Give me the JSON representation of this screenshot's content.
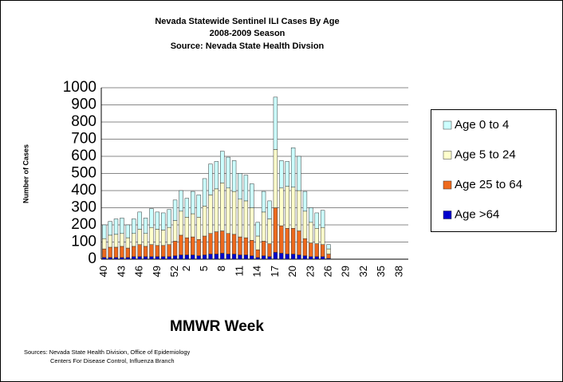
{
  "chart_data": {
    "type": "stacked_bar",
    "title": "Nevada Statewide Sentinel ILI Cases By Age",
    "subtitle": "2008-2009 Season",
    "source_line": "Source:  Nevada State Health Divsion",
    "x_label": "MMWR Week",
    "y_label": "Number of Cases",
    "footnotes": [
      "Sources:  Nevada State Health Division, Office of Epidemiology",
      "Centers For Disease Control, Influenza Branch"
    ],
    "categories": [
      "40",
      null,
      null,
      "43",
      null,
      null,
      "46",
      null,
      null,
      "49",
      null,
      null,
      "52",
      null,
      "2",
      null,
      null,
      "5",
      null,
      null,
      "8",
      null,
      null,
      "11",
      null,
      null,
      "14",
      null,
      null,
      "17",
      null,
      null,
      "20",
      null,
      null,
      "23",
      null,
      null,
      "26",
      null,
      null,
      "29",
      null,
      null,
      "32",
      null,
      null,
      "35",
      null,
      null,
      "38",
      null
    ],
    "series": [
      {
        "name": "Age 0 to 4",
        "color": "#ccffff",
        "values": [
          80,
          80,
          90,
          90,
          75,
          85,
          100,
          90,
          110,
          100,
          100,
          105,
          120,
          120,
          110,
          130,
          130,
          160,
          180,
          160,
          185,
          180,
          180,
          150,
          150,
          140,
          80,
          120,
          105,
          305,
          160,
          145,
          230,
          200,
          115,
          85,
          90,
          100,
          25,
          null,
          null,
          null,
          null,
          null,
          null,
          null,
          null,
          null,
          null,
          null,
          null,
          null
        ]
      },
      {
        "name": "Age 5 to 24",
        "color": "#ffffcc",
        "values": [
          60,
          70,
          75,
          75,
          60,
          75,
          90,
          75,
          100,
          95,
          90,
          100,
          120,
          140,
          120,
          135,
          130,
          175,
          225,
          250,
          280,
          265,
          250,
          220,
          215,
          190,
          80,
          170,
          145,
          340,
          220,
          245,
          240,
          235,
          160,
          120,
          90,
          100,
          30,
          null,
          null,
          null,
          null,
          null,
          null,
          null,
          null,
          null,
          null,
          null,
          null,
          null
        ]
      },
      {
        "name": "Age 25 to 64",
        "color": "#ee6a1e",
        "values": [
          50,
          60,
          60,
          65,
          55,
          60,
          70,
          60,
          70,
          65,
          65,
          70,
          85,
          115,
          100,
          105,
          95,
          110,
          120,
          130,
          130,
          120,
          115,
          105,
          100,
          90,
          45,
          85,
          75,
          260,
          160,
          150,
          150,
          140,
          100,
          80,
          75,
          70,
          25,
          null,
          null,
          null,
          null,
          null,
          null,
          null,
          null,
          null,
          null,
          null,
          null,
          null
        ]
      },
      {
        "name": "Age >64",
        "color": "#0000cc",
        "values": [
          10,
          10,
          10,
          10,
          10,
          15,
          15,
          15,
          15,
          15,
          15,
          15,
          20,
          25,
          25,
          25,
          20,
          25,
          30,
          30,
          35,
          30,
          30,
          25,
          25,
          20,
          10,
          20,
          15,
          40,
          35,
          30,
          30,
          25,
          20,
          15,
          15,
          15,
          5,
          null,
          null,
          null,
          null,
          null,
          null,
          null,
          null,
          null,
          null,
          null,
          null,
          null
        ]
      }
    ],
    "ylim": [
      0,
      1000
    ],
    "yticks": [
      0,
      100,
      200,
      300,
      400,
      500,
      600,
      700,
      800,
      900,
      1000
    ],
    "grid": true,
    "legend": "right"
  }
}
